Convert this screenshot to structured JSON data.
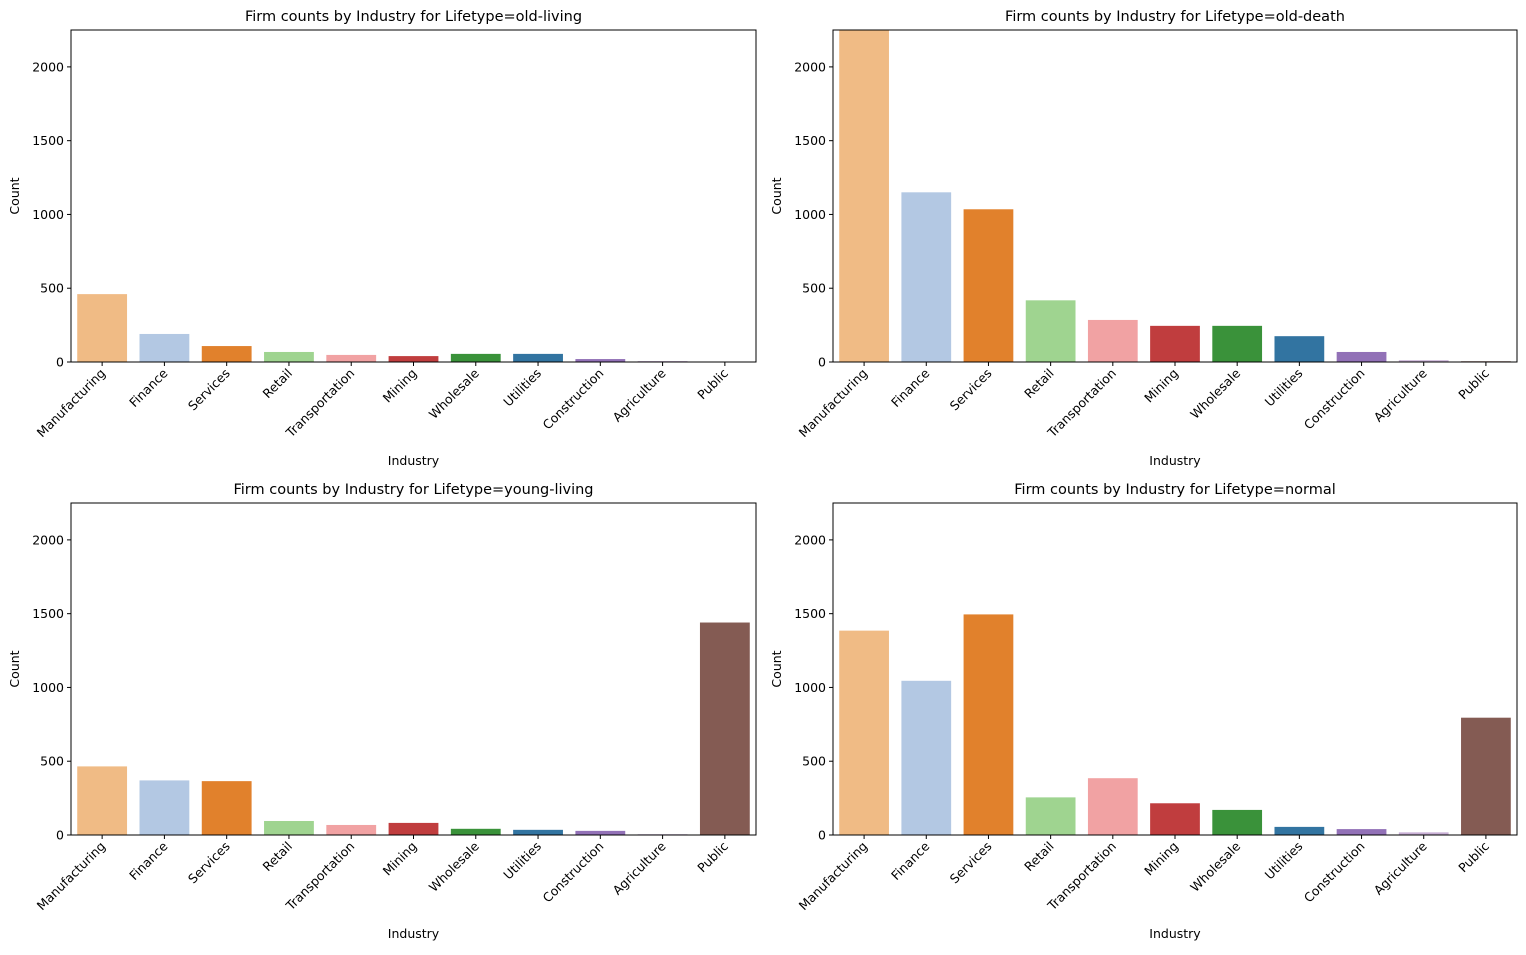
{
  "chart_data": [
    {
      "type": "bar",
      "title": "Firm counts by Industry for Lifetype=old-living",
      "xlabel": "Industry",
      "ylabel": "Count",
      "ylim": [
        0,
        2250
      ],
      "yticks": [
        0,
        500,
        1000,
        1500,
        2000
      ],
      "categories": [
        "Manufacturing",
        "Finance",
        "Services",
        "Retail",
        "Transportation",
        "Mining",
        "Wholesale",
        "Utilities",
        "Construction",
        "Agriculture",
        "Public"
      ],
      "values": [
        460,
        190,
        108,
        68,
        48,
        40,
        55,
        55,
        20,
        6,
        2
      ]
    },
    {
      "type": "bar",
      "title": "Firm counts by Industry for Lifetype=old-death",
      "xlabel": "Industry",
      "ylabel": "Count",
      "ylim": [
        0,
        2250
      ],
      "yticks": [
        0,
        500,
        1000,
        1500,
        2000
      ],
      "categories": [
        "Manufacturing",
        "Finance",
        "Services",
        "Retail",
        "Transportation",
        "Mining",
        "Wholesale",
        "Utilities",
        "Construction",
        "Agriculture",
        "Public"
      ],
      "values": [
        2260,
        1150,
        1035,
        418,
        285,
        245,
        245,
        175,
        68,
        12,
        5
      ]
    },
    {
      "type": "bar",
      "title": "Firm counts by Industry for Lifetype=young-living",
      "xlabel": "Industry",
      "ylabel": "Count",
      "ylim": [
        0,
        2250
      ],
      "yticks": [
        0,
        500,
        1000,
        1500,
        2000
      ],
      "categories": [
        "Manufacturing",
        "Finance",
        "Services",
        "Retail",
        "Transportation",
        "Mining",
        "Wholesale",
        "Utilities",
        "Construction",
        "Agriculture",
        "Public"
      ],
      "values": [
        465,
        370,
        365,
        95,
        68,
        82,
        42,
        35,
        28,
        5,
        1440
      ]
    },
    {
      "type": "bar",
      "title": "Firm counts by Industry for Lifetype=normal",
      "xlabel": "Industry",
      "ylabel": "Count",
      "ylim": [
        0,
        2250
      ],
      "yticks": [
        0,
        500,
        1000,
        1500,
        2000
      ],
      "categories": [
        "Manufacturing",
        "Finance",
        "Services",
        "Retail",
        "Transportation",
        "Mining",
        "Wholesale",
        "Utilities",
        "Construction",
        "Agriculture",
        "Public"
      ],
      "values": [
        1385,
        1045,
        1495,
        255,
        385,
        215,
        170,
        55,
        40,
        18,
        795
      ]
    }
  ],
  "palette": [
    "#f0bb85",
    "#b3c8e3",
    "#e1812c",
    "#9fd490",
    "#f1a2a3",
    "#c03d3e",
    "#3a923a",
    "#3274a1",
    "#9271b7",
    "#c8afd5",
    "#845b53"
  ]
}
